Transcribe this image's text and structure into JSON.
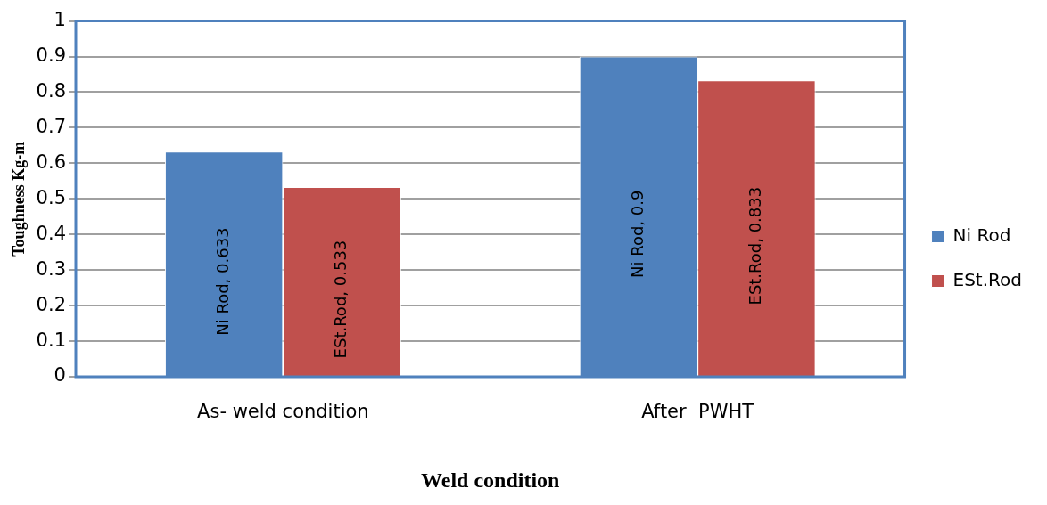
{
  "chart_data": {
    "type": "bar",
    "xlabel": "Weld condition",
    "ylabel": "Toughness Kg-m",
    "categories": [
      "As- weld condition",
      "After  PWHT"
    ],
    "series": [
      {
        "name": "Ni Rod",
        "color": "#4f81bd",
        "values": [
          0.633,
          0.9
        ],
        "value_labels": [
          "Ni Rod, 0.633",
          "Ni Rod, 0.9"
        ]
      },
      {
        "name": "ESt.Rod",
        "color": "#c0504d",
        "values": [
          0.533,
          0.833
        ],
        "value_labels": [
          "ESt.Rod, 0.533",
          "ESt.Rod, 0.833"
        ]
      }
    ],
    "ylim": [
      0,
      1
    ],
    "yticks": [
      0,
      0.1,
      0.2,
      0.3,
      0.4,
      0.5,
      0.6,
      0.7,
      0.8,
      0.9,
      1
    ],
    "grid": "y",
    "legend": "right"
  }
}
